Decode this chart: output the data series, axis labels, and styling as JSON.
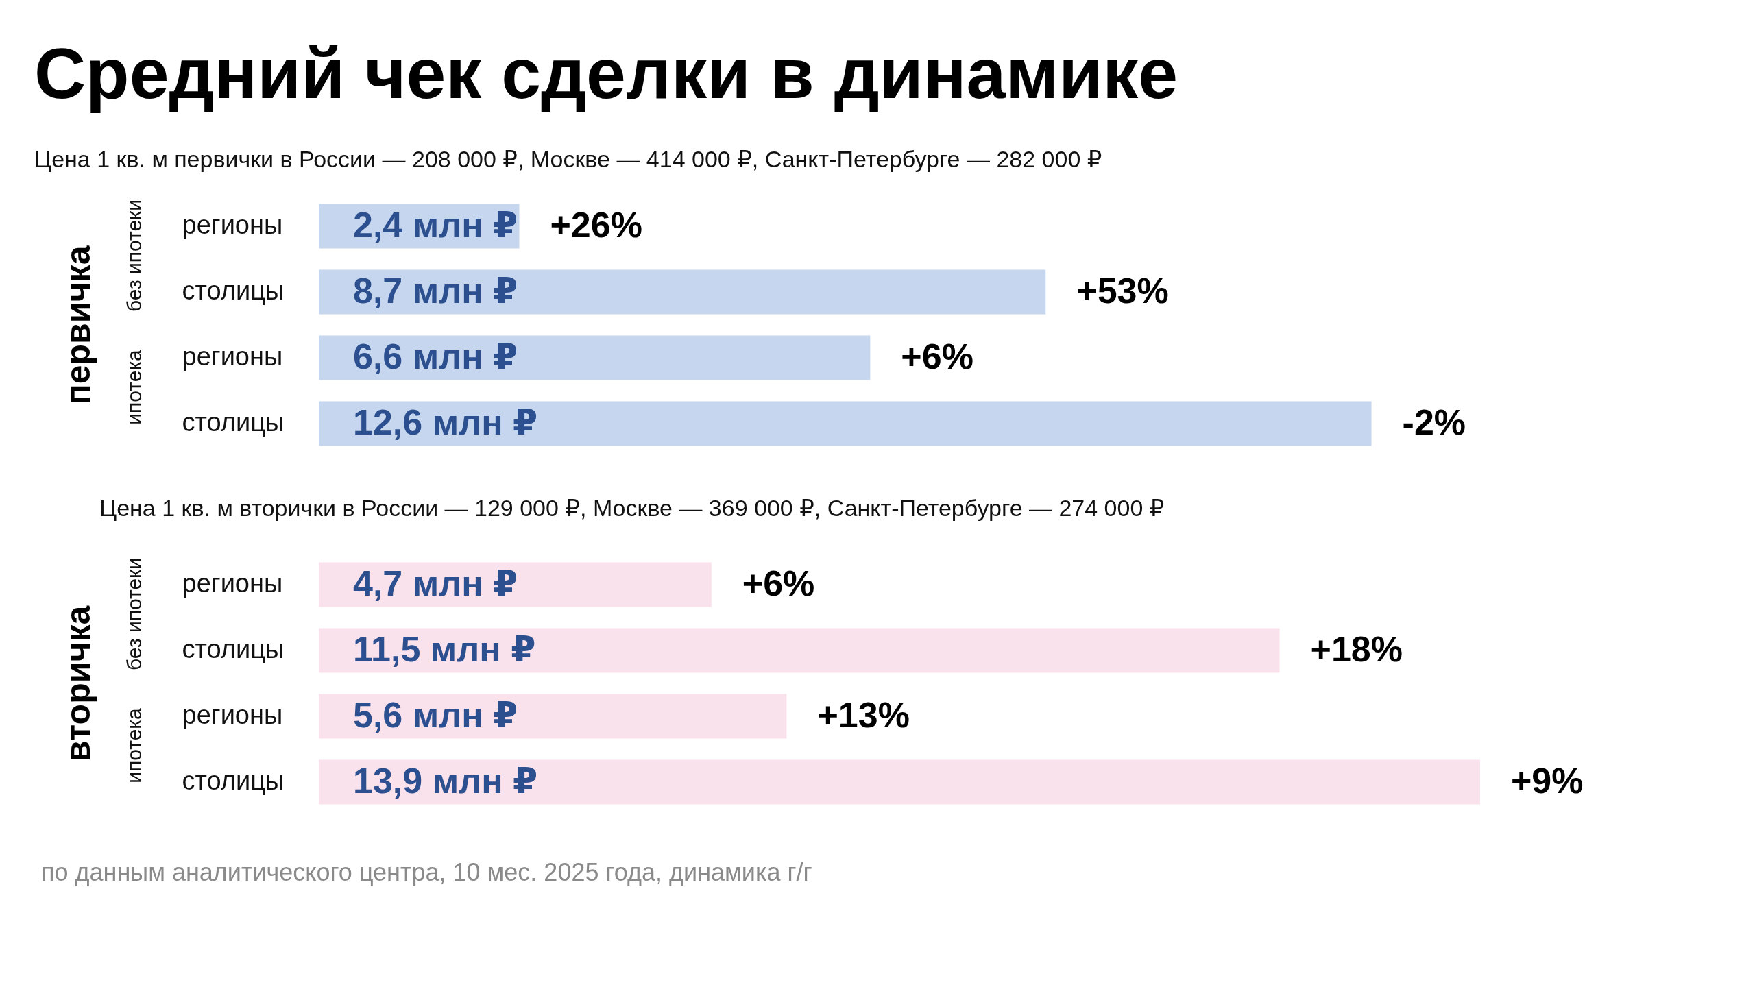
{
  "chart_data": [
    {
      "type": "bar",
      "orientation": "horizontal",
      "title": "Средний чек сделки в динамике",
      "subtitle": "Цена 1 кв. м первички в России — 208 000 ₽, Москве — 414 000 ₽, Санкт-Петербурге — 282 000 ₽",
      "ylabel": "первичка",
      "categories": [
        "регионы",
        "столицы",
        "регионы",
        "столицы"
      ],
      "values": [
        2.4,
        8.7,
        6.6,
        12.6
      ],
      "value_labels": [
        "2,4 млн ₽",
        "8,7 млн ₽",
        "6,6 млн ₽",
        "12,6 млн ₽"
      ],
      "color": "#c6d6ee",
      "annotations": [
        {
          "text": "+26%",
          "x": 2.4
        },
        {
          "text": "+53%",
          "x": 8.7
        },
        {
          "text": "+6%",
          "x": 6.6
        },
        {
          "text": "-2%",
          "x": 12.6
        },
        "без ипотеки",
        "ипотека"
      ]
    },
    {
      "type": "bar",
      "orientation": "horizontal",
      "subtitle": "Цена 1 кв. м вторички в России — 129 000 ₽, Москве — 369 000 ₽, Санкт-Петербурге — 274 000 ₽",
      "ylabel": "вторичка",
      "categories": [
        "регионы",
        "столицы",
        "регионы",
        "столицы"
      ],
      "values": [
        4.7,
        11.5,
        5.6,
        13.9
      ],
      "value_labels": [
        "4,7 млн ₽",
        "11,5 млн ₽",
        "5,6 млн ₽",
        "13,9 млн ₽"
      ],
      "color": "#f9e2ec",
      "annotations": [
        {
          "text": "+6%",
          "x": 4.7
        },
        {
          "text": "+18%",
          "x": 11.5
        },
        {
          "text": "+13%",
          "x": 5.6
        },
        {
          "text": "+9%",
          "x": 13.9
        },
        "без ипотеки",
        "ипотека",
        "по данным аналитического центра, 10 мес. 2025 года, динамика г/г"
      ]
    }
  ]
}
